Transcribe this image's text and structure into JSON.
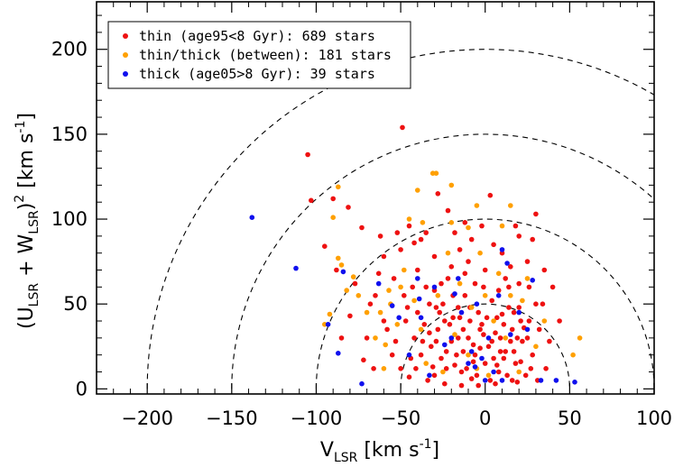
{
  "chart_data": {
    "type": "scatter",
    "xlabel": {
      "main": "V",
      "sub": "LSR",
      "units_pre": " [km s",
      "units_sup": "-1",
      "units_post": "]"
    },
    "ylabel": {
      "open": "(U",
      "sub1": "LSR",
      "plus": " + W",
      "sub2": "LSR",
      "close": ")",
      "sup": "2",
      "units_pre": " [km s",
      "units_sup": "-1",
      "units_post": "]"
    },
    "xlim": [
      -230,
      100
    ],
    "ylim": [
      -3,
      228
    ],
    "xticks": [
      -200,
      -150,
      -100,
      -50,
      0,
      50,
      100
    ],
    "yticks": [
      0,
      50,
      100,
      150,
      200
    ],
    "xtick_labels": [
      "−200",
      "−150",
      "−100",
      "−50",
      "0",
      "50",
      "100"
    ],
    "ytick_labels": [
      "0",
      "50",
      "100",
      "150",
      "200"
    ],
    "grid": false,
    "legend_position": "top-left",
    "reference_circles": {
      "center": [
        0,
        0
      ],
      "radii": [
        50,
        100,
        150,
        200
      ],
      "style": "dashed"
    },
    "series": [
      {
        "name": "thin (age95<8 Gyr): 689 stars",
        "color": "#ee1111",
        "points": [
          [
            -49,
            154
          ],
          [
            -105,
            138
          ],
          [
            -103,
            111
          ],
          [
            -90,
            112
          ],
          [
            -81,
            107
          ],
          [
            -95,
            84
          ],
          [
            -73,
            95
          ],
          [
            -62,
            90
          ],
          [
            -52,
            92
          ],
          [
            -45,
            96
          ],
          [
            -38,
            88
          ],
          [
            -28,
            115
          ],
          [
            -22,
            105
          ],
          [
            -12,
            98
          ],
          [
            3,
            114
          ],
          [
            10,
            80
          ],
          [
            30,
            103
          ],
          [
            -35,
            92
          ],
          [
            -8,
            88
          ],
          [
            20,
            90
          ],
          [
            40,
            60
          ],
          [
            44,
            40
          ],
          [
            32,
            35
          ],
          [
            -63,
            68
          ],
          [
            -68,
            50
          ],
          [
            -85,
            30
          ],
          [
            -72,
            17
          ],
          [
            -55,
            20
          ],
          [
            -60,
            40
          ],
          [
            -48,
            55
          ],
          [
            -50,
            12
          ],
          [
            -45,
            7
          ],
          [
            -42,
            30
          ],
          [
            -40,
            45
          ],
          [
            -35,
            60
          ],
          [
            -38,
            20
          ],
          [
            -30,
            8
          ],
          [
            -28,
            35
          ],
          [
            -25,
            50
          ],
          [
            -22,
            65
          ],
          [
            -20,
            28
          ],
          [
            -18,
            14
          ],
          [
            -15,
            42
          ],
          [
            -12,
            55
          ],
          [
            -10,
            30
          ],
          [
            -8,
            6
          ],
          [
            -6,
            20
          ],
          [
            -4,
            45
          ],
          [
            -2,
            38
          ],
          [
            0,
            15
          ],
          [
            2,
            25
          ],
          [
            4,
            52
          ],
          [
            6,
            33
          ],
          [
            8,
            10
          ],
          [
            10,
            44
          ],
          [
            12,
            22
          ],
          [
            14,
            60
          ],
          [
            16,
            35
          ],
          [
            18,
            15
          ],
          [
            20,
            48
          ],
          [
            22,
            28
          ],
          [
            24,
            8
          ],
          [
            26,
            40
          ],
          [
            28,
            20
          ],
          [
            -32,
            25
          ],
          [
            -26,
            18
          ],
          [
            -24,
            40
          ],
          [
            -16,
            30
          ],
          [
            -14,
            10
          ],
          [
            -9,
            48
          ],
          [
            -5,
            8
          ],
          [
            -1,
            60
          ],
          [
            3,
            5
          ],
          [
            7,
            42
          ],
          [
            11,
            18
          ],
          [
            15,
            28
          ],
          [
            19,
            4
          ],
          [
            23,
            36
          ],
          [
            27,
            12
          ],
          [
            30,
            50
          ],
          [
            -44,
            18
          ],
          [
            -36,
            38
          ],
          [
            -33,
            50
          ],
          [
            -31,
            13
          ],
          [
            -29,
            28
          ],
          [
            -27,
            45
          ],
          [
            -23,
            22
          ],
          [
            -21,
            38
          ],
          [
            -19,
            55
          ],
          [
            -17,
            20
          ],
          [
            -13,
            35
          ],
          [
            -11,
            12
          ],
          [
            -7,
            26
          ],
          [
            -3,
            35
          ],
          [
            1,
            42
          ],
          [
            5,
            18
          ],
          [
            9,
            30
          ],
          [
            13,
            8
          ],
          [
            17,
            45
          ],
          [
            21,
            16
          ],
          [
            25,
            30
          ],
          [
            -20,
            72
          ],
          [
            -10,
            75
          ],
          [
            0,
            70
          ],
          [
            15,
            72
          ],
          [
            -30,
            78
          ],
          [
            -15,
            82
          ],
          [
            5,
            85
          ],
          [
            25,
            75
          ],
          [
            35,
            70
          ],
          [
            -40,
            70
          ],
          [
            -54,
            65
          ],
          [
            -58,
            35
          ],
          [
            -47,
            40
          ],
          [
            -53,
            28
          ],
          [
            -43,
            60
          ],
          [
            -66,
            12
          ],
          [
            -70,
            30
          ],
          [
            -80,
            43
          ],
          [
            -77,
            62
          ],
          [
            -60,
            78
          ],
          [
            -88,
            70
          ],
          [
            -50,
            82
          ],
          [
            -42,
            86
          ],
          [
            -18,
            92
          ],
          [
            -2,
            96
          ],
          [
            18,
            96
          ],
          [
            28,
            88
          ],
          [
            -65,
            55
          ],
          [
            -37,
            28
          ],
          [
            -34,
            5
          ],
          [
            -30,
            58
          ],
          [
            -26,
            62
          ],
          [
            -12,
            68
          ],
          [
            -6,
            62
          ],
          [
            8,
            58
          ],
          [
            12,
            65
          ],
          [
            20,
            62
          ],
          [
            26,
            60
          ],
          [
            34,
            50
          ],
          [
            38,
            28
          ],
          [
            36,
            12
          ],
          [
            31,
            5
          ],
          [
            -24,
            3
          ],
          [
            -14,
            2
          ],
          [
            -4,
            2
          ],
          [
            6,
            3
          ],
          [
            16,
            5
          ],
          [
            -19,
            42
          ],
          [
            -9,
            40
          ],
          [
            11,
            38
          ],
          [
            21,
            40
          ],
          [
            -33,
            33
          ],
          [
            -23,
            12
          ],
          [
            -13,
            22
          ],
          [
            -3,
            24
          ],
          [
            7,
            14
          ],
          [
            17,
            22
          ],
          [
            -46,
            48
          ],
          [
            -41,
            12
          ],
          [
            -29,
            48
          ],
          [
            -7,
            16
          ],
          [
            4,
            28
          ],
          [
            14,
            48
          ],
          [
            -16,
            48
          ],
          [
            -1,
            32
          ],
          [
            9,
            22
          ],
          [
            19,
            30
          ]
        ]
      },
      {
        "name": "thin/thick (between): 181 stars",
        "color": "#ffa000",
        "points": [
          [
            -87,
            119
          ],
          [
            -90,
            101
          ],
          [
            -87,
            77
          ],
          [
            -85,
            73
          ],
          [
            -78,
            66
          ],
          [
            -95,
            38
          ],
          [
            -92,
            44
          ],
          [
            -82,
            58
          ],
          [
            -70,
            45
          ],
          [
            -56,
            50
          ],
          [
            -59,
            26
          ],
          [
            -57,
            58
          ],
          [
            -31,
            127
          ],
          [
            -29,
            127
          ],
          [
            -20,
            120
          ],
          [
            -40,
            117
          ],
          [
            -45,
            100
          ],
          [
            -37,
            98
          ],
          [
            -20,
            98
          ],
          [
            -10,
            95
          ],
          [
            -5,
            108
          ],
          [
            10,
            96
          ],
          [
            15,
            108
          ],
          [
            -48,
            70
          ],
          [
            -38,
            35
          ],
          [
            -28,
            55
          ],
          [
            -15,
            62
          ],
          [
            -5,
            12
          ],
          [
            5,
            40
          ],
          [
            15,
            55
          ],
          [
            25,
            65
          ],
          [
            -60,
            12
          ],
          [
            -52,
            38
          ],
          [
            -35,
            15
          ],
          [
            -18,
            32
          ],
          [
            -8,
            48
          ],
          [
            2,
            8
          ],
          [
            12,
            30
          ],
          [
            22,
            52
          ],
          [
            35,
            40
          ],
          [
            56,
            30
          ],
          [
            52,
            20
          ],
          [
            -25,
            10
          ],
          [
            -10,
            20
          ],
          [
            0,
            55
          ],
          [
            8,
            68
          ],
          [
            -42,
            52
          ],
          [
            -50,
            60
          ],
          [
            -62,
            45
          ],
          [
            -75,
            55
          ],
          [
            20,
            10
          ],
          [
            30,
            25
          ],
          [
            -3,
            80
          ],
          [
            -22,
            80
          ],
          [
            -65,
            30
          ]
        ]
      },
      {
        "name": "thick (age05>8 Gyr): 39 stars",
        "color": "#1010ee",
        "points": [
          [
            -138,
            101
          ],
          [
            -112,
            71
          ],
          [
            -93,
            38
          ],
          [
            -87,
            21
          ],
          [
            -73,
            3
          ],
          [
            -84,
            69
          ],
          [
            -63,
            62
          ],
          [
            -55,
            49
          ],
          [
            -51,
            42
          ],
          [
            -40,
            65
          ],
          [
            -39,
            53
          ],
          [
            -38,
            42
          ],
          [
            -30,
            60
          ],
          [
            -20,
            30
          ],
          [
            -16,
            65
          ],
          [
            -14,
            45
          ],
          [
            -10,
            15
          ],
          [
            -8,
            22
          ],
          [
            -6,
            13
          ],
          [
            -5,
            50
          ],
          [
            0,
            5
          ],
          [
            2,
            30
          ],
          [
            8,
            55
          ],
          [
            10,
            82
          ],
          [
            13,
            74
          ],
          [
            15,
            32
          ],
          [
            20,
            45
          ],
          [
            25,
            35
          ],
          [
            28,
            64
          ],
          [
            -24,
            26
          ],
          [
            -2,
            18
          ],
          [
            5,
            10
          ],
          [
            -45,
            20
          ],
          [
            -33,
            8
          ],
          [
            42,
            5
          ],
          [
            53,
            4
          ],
          [
            33,
            5
          ],
          [
            -18,
            56
          ],
          [
            10,
            5
          ]
        ]
      }
    ]
  }
}
